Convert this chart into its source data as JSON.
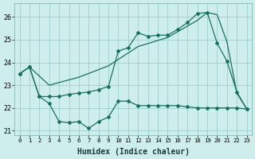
{
  "xlabel": "Humidex (Indice chaleur)",
  "bg_color": "#cdeeed",
  "grid_color": "#9ecece",
  "line_color": "#1a7060",
  "xlim": [
    -0.5,
    23.5
  ],
  "ylim": [
    20.8,
    26.6
  ],
  "xticks": [
    0,
    1,
    2,
    3,
    4,
    5,
    6,
    7,
    8,
    9,
    10,
    11,
    12,
    13,
    14,
    15,
    16,
    17,
    18,
    19,
    20,
    21,
    22,
    23
  ],
  "yticks": [
    21,
    22,
    23,
    24,
    25,
    26
  ],
  "lineA_x": [
    0,
    1,
    2,
    3,
    4,
    5,
    6,
    7,
    8,
    9,
    10,
    11,
    12,
    13,
    14,
    15,
    16,
    17,
    18,
    19,
    20,
    21,
    22,
    23
  ],
  "lineA_y": [
    23.5,
    23.8,
    22.5,
    22.2,
    21.4,
    21.35,
    21.4,
    21.1,
    21.4,
    21.6,
    22.3,
    22.3,
    22.1,
    22.1,
    22.1,
    22.1,
    22.1,
    22.05,
    22.0,
    22.0,
    22.0,
    22.0,
    22.0,
    21.95
  ],
  "lineB_x": [
    0,
    1,
    3,
    6,
    9,
    12,
    15,
    17,
    18,
    19,
    20,
    21,
    22,
    23
  ],
  "lineB_y": [
    23.5,
    23.8,
    23.0,
    23.35,
    23.85,
    24.7,
    25.1,
    25.6,
    25.85,
    26.2,
    26.1,
    24.9,
    22.65,
    21.95
  ],
  "lineC_x": [
    0,
    1,
    2,
    3,
    4,
    5,
    6,
    7,
    8,
    9,
    10,
    11,
    12,
    13,
    14,
    15,
    16,
    17,
    18,
    19,
    20,
    21,
    22,
    23
  ],
  "lineC_y": [
    23.5,
    23.8,
    22.5,
    22.5,
    22.5,
    22.6,
    22.65,
    22.7,
    22.8,
    22.95,
    24.5,
    24.65,
    25.3,
    25.15,
    25.2,
    25.2,
    25.45,
    25.75,
    26.15,
    26.2,
    24.85,
    24.05,
    22.7,
    21.95
  ]
}
